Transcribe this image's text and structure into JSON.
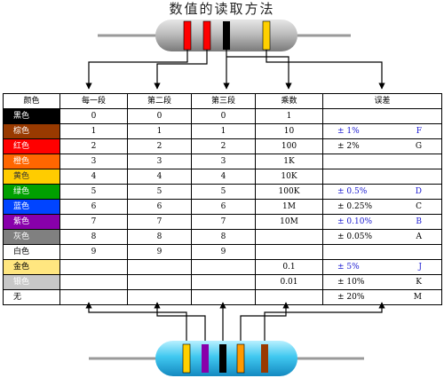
{
  "title": "数值的读取方法",
  "headers": [
    "颜色",
    "每一段",
    "第二段",
    "第三段",
    "乘数",
    "误差"
  ],
  "rows": [
    {
      "color": "黑色",
      "swatch": "#000000",
      "fg": "#ffffff",
      "d1": "0",
      "d2": "0",
      "d3": "0",
      "mult": "1",
      "tol": "",
      "code": "",
      "tolColor": "#000000"
    },
    {
      "color": "棕色",
      "swatch": "#993a00",
      "fg": "#ffffff",
      "d1": "1",
      "d2": "1",
      "d3": "1",
      "mult": "10",
      "tol": "± 1%",
      "code": "F",
      "tolColor": "#1a1ad0"
    },
    {
      "color": "红色",
      "swatch": "#ff0000",
      "fg": "#ffffff",
      "d1": "2",
      "d2": "2",
      "d3": "2",
      "mult": "100",
      "tol": "± 2%",
      "code": "G",
      "tolColor": "#000000"
    },
    {
      "color": "橙色",
      "swatch": "#ff6600",
      "fg": "#ffffff",
      "d1": "3",
      "d2": "3",
      "d3": "3",
      "mult": "1K",
      "tol": "",
      "code": "",
      "tolColor": "#000000"
    },
    {
      "color": "黄色",
      "swatch": "#ffcc00",
      "fg": "#333333",
      "d1": "4",
      "d2": "4",
      "d3": "4",
      "mult": "10K",
      "tol": "",
      "code": "",
      "tolColor": "#000000"
    },
    {
      "color": "绿色",
      "swatch": "#00a000",
      "fg": "#ffffff",
      "d1": "5",
      "d2": "5",
      "d3": "5",
      "mult": "100K",
      "tol": "± 0.5%",
      "code": "D",
      "tolColor": "#1a1ad0"
    },
    {
      "color": "蓝色",
      "swatch": "#0044ff",
      "fg": "#ffffff",
      "d1": "6",
      "d2": "6",
      "d3": "6",
      "mult": "1M",
      "tol": "± 0.25%",
      "code": "C",
      "tolColor": "#000000"
    },
    {
      "color": "紫色",
      "swatch": "#8800aa",
      "fg": "#ffffff",
      "d1": "7",
      "d2": "7",
      "d3": "7",
      "mult": "10M",
      "tol": "± 0.10%",
      "code": "B",
      "tolColor": "#1a1ad0"
    },
    {
      "color": "灰色",
      "swatch": "#808080",
      "fg": "#ffffff",
      "d1": "8",
      "d2": "8",
      "d3": "8",
      "mult": "",
      "tol": "± 0.05%",
      "code": "A",
      "tolColor": "#000000"
    },
    {
      "color": "白色",
      "swatch": "#ffffff",
      "fg": "#000000",
      "d1": "9",
      "d2": "9",
      "d3": "9",
      "mult": "",
      "tol": "",
      "code": "",
      "tolColor": "#000000"
    },
    {
      "color": "金色",
      "swatch": "#ffe680",
      "fg": "#000000",
      "d1": "",
      "d2": "",
      "d3": "",
      "mult": "0.1",
      "tol": "± 5%",
      "code": "J",
      "tolColor": "#1a1ad0"
    },
    {
      "color": "银色",
      "swatch": "#c8c8c8",
      "fg": "#ffffff",
      "d1": "",
      "d2": "",
      "d3": "",
      "mult": "0.01",
      "tol": "± 10%",
      "code": "K",
      "tolColor": "#000000"
    },
    {
      "color": "无",
      "swatch": "#ffffff",
      "fg": "#000000",
      "d1": "",
      "d2": "",
      "d3": "",
      "mult": "",
      "tol": "± 20%",
      "code": "M",
      "tolColor": "#000000"
    }
  ],
  "resistor_top": {
    "body": "#9a9a9a",
    "bands": [
      "#ff0000",
      "#ff0000",
      "#000000",
      "#ffd000"
    ]
  },
  "resistor_bottom": {
    "body": "#3ec6ef",
    "bands": [
      "#ffd000",
      "#8800aa",
      "#000000",
      "#ff9900",
      "#993a00"
    ]
  }
}
